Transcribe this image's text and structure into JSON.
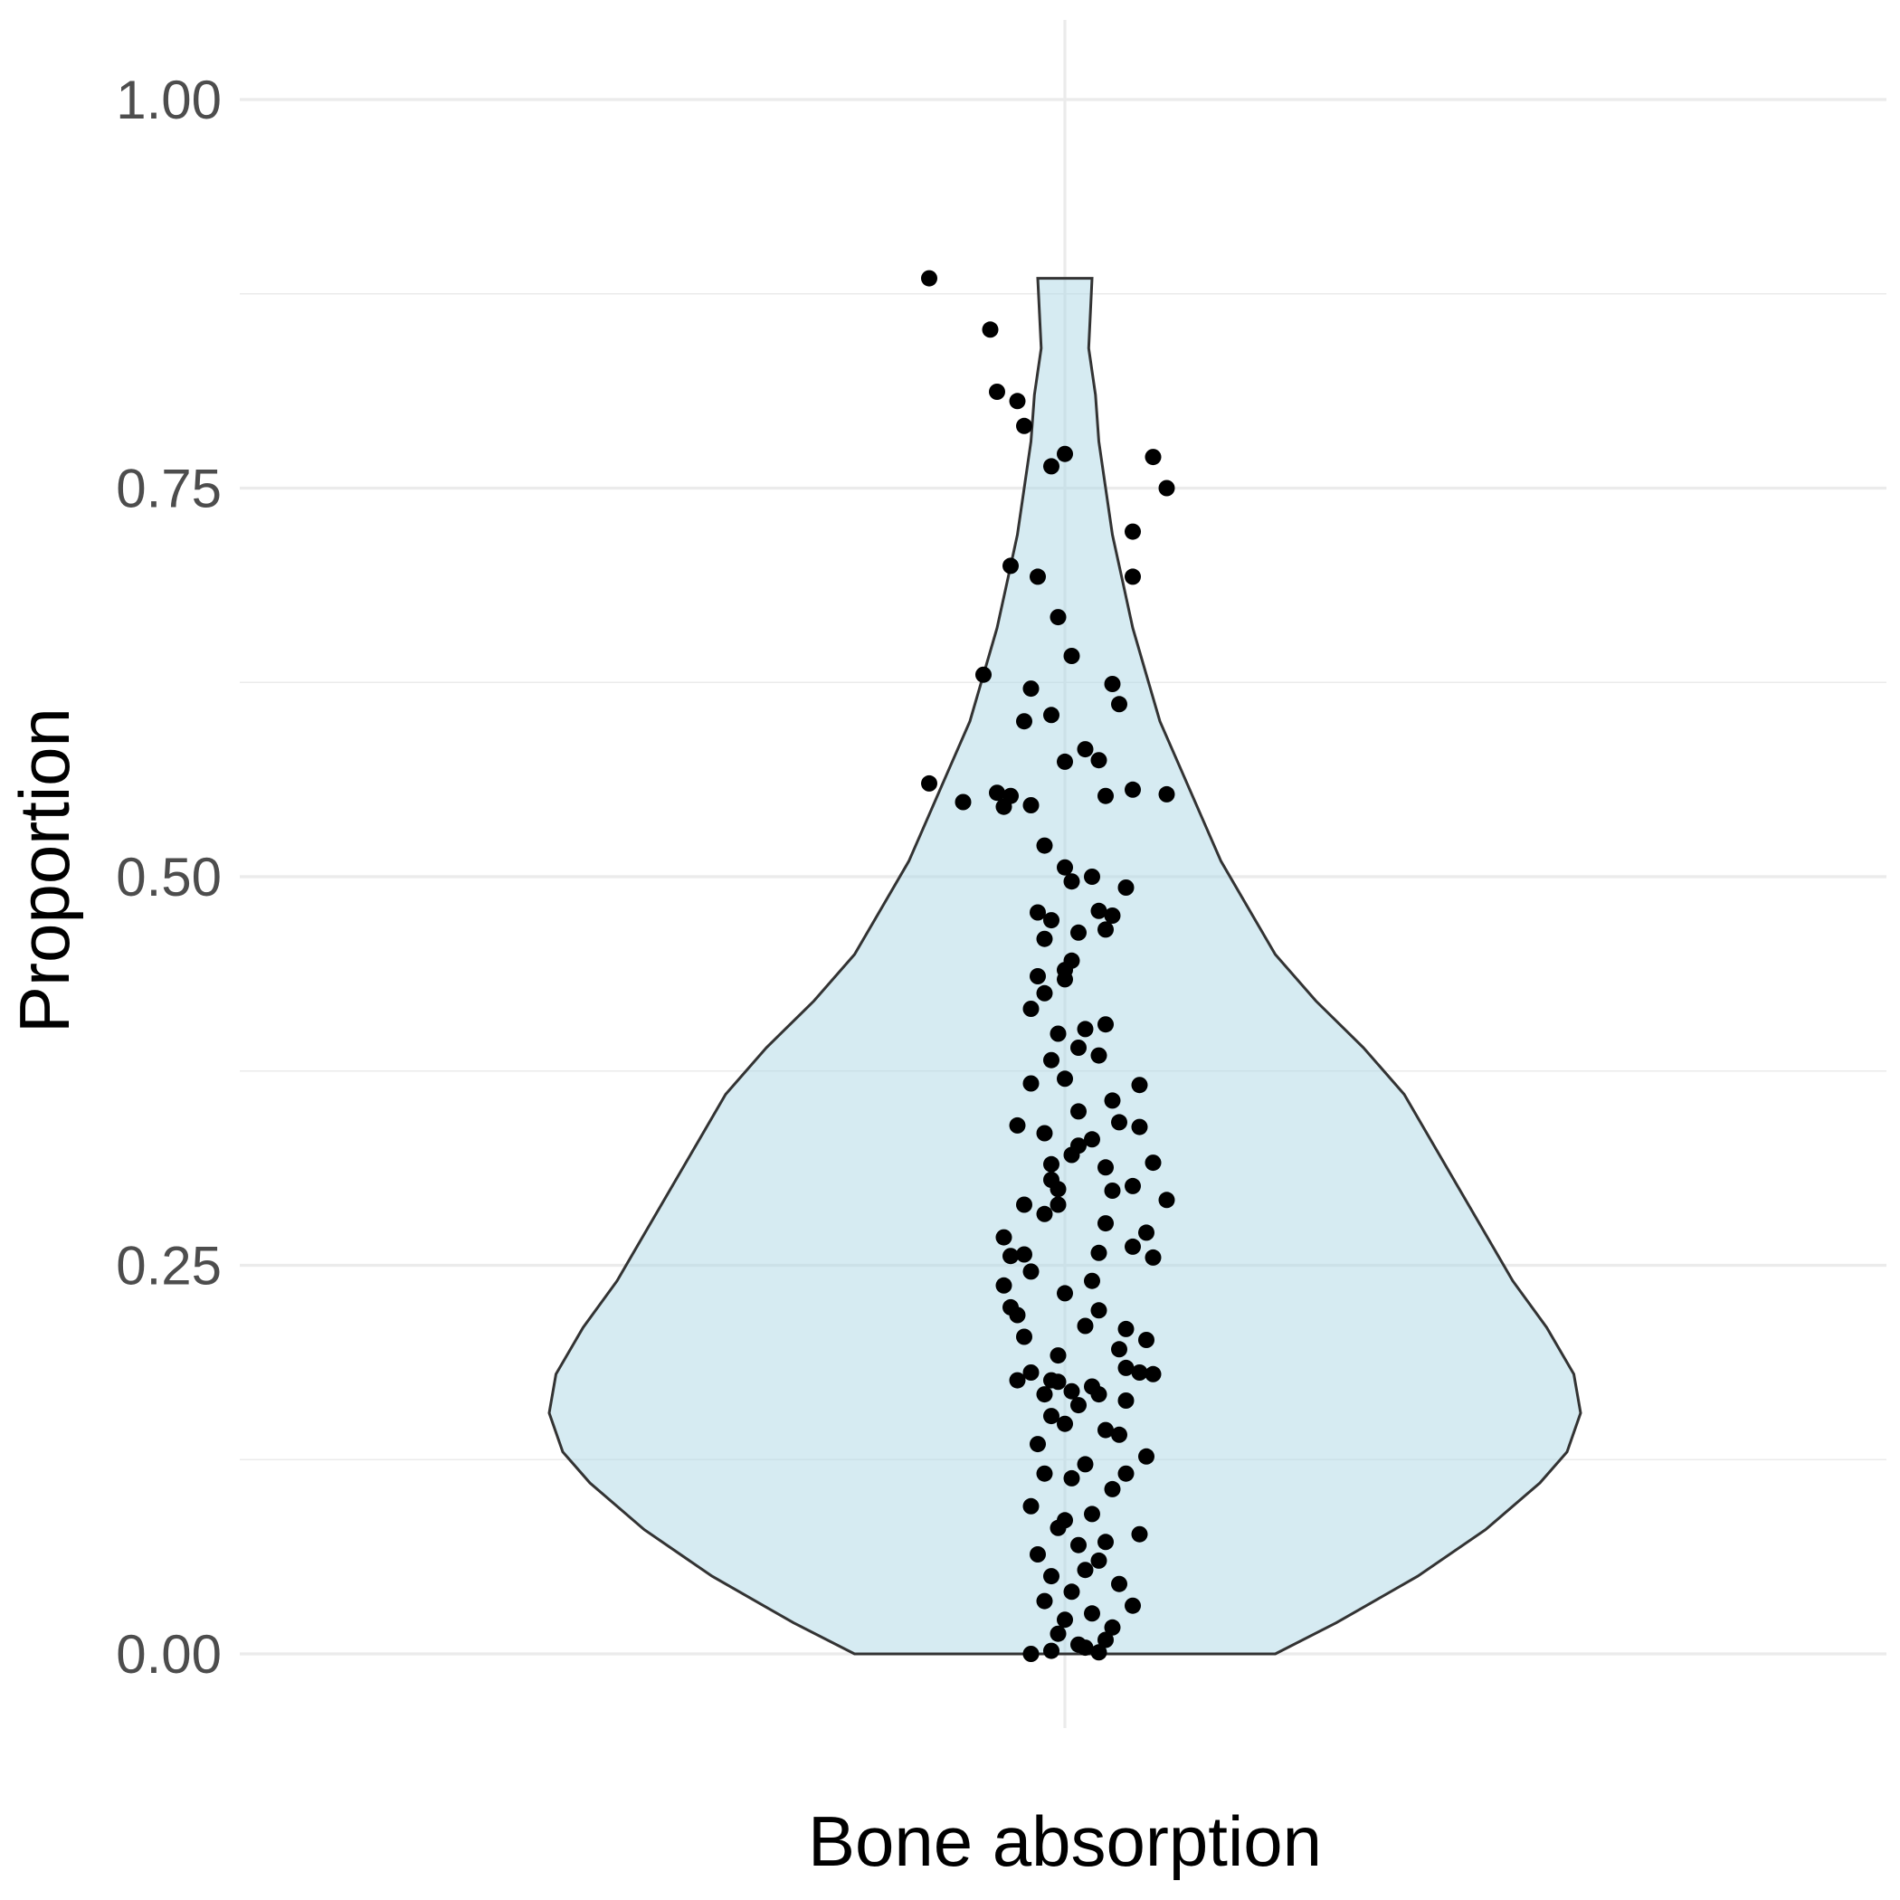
{
  "chart_data": {
    "type": "violin",
    "title": "",
    "xlabel": "",
    "ylabel": "Proportion",
    "categories": [
      "Bone absorption"
    ],
    "ylim": [
      -0.05,
      1.05
    ],
    "yticks": [
      "0.00",
      "0.25",
      "0.50",
      "0.75",
      "1.00"
    ],
    "grid": true,
    "violin": {
      "fill": "#add8e6",
      "fill_opacity": 0.5,
      "outline": "#333333",
      "y_min": 0.0,
      "y_max": 0.885,
      "density_profile": [
        [
          0.0,
          0.31
        ],
        [
          0.02,
          0.4
        ],
        [
          0.05,
          0.52
        ],
        [
          0.08,
          0.62
        ],
        [
          0.11,
          0.7
        ],
        [
          0.13,
          0.74
        ],
        [
          0.155,
          0.76
        ],
        [
          0.18,
          0.75
        ],
        [
          0.21,
          0.71
        ],
        [
          0.24,
          0.66
        ],
        [
          0.27,
          0.62
        ],
        [
          0.3,
          0.58
        ],
        [
          0.33,
          0.54
        ],
        [
          0.36,
          0.5
        ],
        [
          0.39,
          0.44
        ],
        [
          0.42,
          0.37
        ],
        [
          0.45,
          0.31
        ],
        [
          0.48,
          0.27
        ],
        [
          0.51,
          0.23
        ],
        [
          0.54,
          0.2
        ],
        [
          0.57,
          0.17
        ],
        [
          0.6,
          0.14
        ],
        [
          0.63,
          0.12
        ],
        [
          0.66,
          0.1
        ],
        [
          0.69,
          0.085
        ],
        [
          0.72,
          0.07
        ],
        [
          0.75,
          0.06
        ],
        [
          0.78,
          0.05
        ],
        [
          0.81,
          0.045
        ],
        [
          0.84,
          0.035
        ],
        [
          0.885,
          0.04
        ]
      ]
    },
    "points": [
      [
        -0.2,
        0.885
      ],
      [
        -0.11,
        0.852
      ],
      [
        -0.1,
        0.812
      ],
      [
        -0.07,
        0.806
      ],
      [
        -0.06,
        0.79
      ],
      [
        0.0,
        0.772
      ],
      [
        0.13,
        0.77
      ],
      [
        -0.02,
        0.764
      ],
      [
        0.15,
        0.75
      ],
      [
        0.1,
        0.722
      ],
      [
        -0.08,
        0.7
      ],
      [
        0.1,
        0.693
      ],
      [
        -0.04,
        0.693
      ],
      [
        -0.01,
        0.667
      ],
      [
        0.01,
        0.642
      ],
      [
        -0.12,
        0.63
      ],
      [
        0.07,
        0.624
      ],
      [
        -0.05,
        0.621
      ],
      [
        -0.02,
        0.604
      ],
      [
        0.08,
        0.611
      ],
      [
        -0.06,
        0.6
      ],
      [
        0.03,
        0.582
      ],
      [
        0.0,
        0.574
      ],
      [
        0.15,
        0.553
      ],
      [
        0.05,
        0.575
      ],
      [
        -0.2,
        0.56
      ],
      [
        -0.1,
        0.554
      ],
      [
        -0.15,
        0.548
      ],
      [
        -0.09,
        0.545
      ],
      [
        -0.08,
        0.552
      ],
      [
        0.1,
        0.556
      ],
      [
        0.06,
        0.552
      ],
      [
        -0.05,
        0.546
      ],
      [
        -0.03,
        0.52
      ],
      [
        0.0,
        0.506
      ],
      [
        0.04,
        0.5
      ],
      [
        0.01,
        0.497
      ],
      [
        0.09,
        0.493
      ],
      [
        0.05,
        0.478
      ],
      [
        -0.04,
        0.477
      ],
      [
        0.07,
        0.475
      ],
      [
        -0.02,
        0.472
      ],
      [
        0.06,
        0.466
      ],
      [
        0.02,
        0.464
      ],
      [
        -0.03,
        0.46
      ],
      [
        0.01,
        0.446
      ],
      [
        0.0,
        0.44
      ],
      [
        -0.04,
        0.436
      ],
      [
        0.0,
        0.434
      ],
      [
        -0.03,
        0.425
      ],
      [
        0.06,
        0.405
      ],
      [
        -0.05,
        0.415
      ],
      [
        0.03,
        0.402
      ],
      [
        -0.01,
        0.399
      ],
      [
        0.02,
        0.39
      ],
      [
        0.05,
        0.385
      ],
      [
        -0.02,
        0.382
      ],
      [
        0.0,
        0.37
      ],
      [
        -0.05,
        0.367
      ],
      [
        0.11,
        0.366
      ],
      [
        0.07,
        0.356
      ],
      [
        0.02,
        0.349
      ],
      [
        0.08,
        0.342
      ],
      [
        -0.07,
        0.34
      ],
      [
        0.11,
        0.339
      ],
      [
        -0.03,
        0.335
      ],
      [
        0.04,
        0.331
      ],
      [
        0.02,
        0.327
      ],
      [
        0.01,
        0.321
      ],
      [
        -0.02,
        0.315
      ],
      [
        0.13,
        0.316
      ],
      [
        0.06,
        0.313
      ],
      [
        -0.02,
        0.305
      ],
      [
        0.1,
        0.301
      ],
      [
        -0.01,
        0.299
      ],
      [
        0.07,
        0.298
      ],
      [
        0.15,
        0.292
      ],
      [
        -0.06,
        0.289
      ],
      [
        -0.01,
        0.289
      ],
      [
        -0.03,
        0.283
      ],
      [
        0.06,
        0.277
      ],
      [
        0.12,
        0.271
      ],
      [
        -0.09,
        0.268
      ],
      [
        0.1,
        0.262
      ],
      [
        0.05,
        0.258
      ],
      [
        -0.06,
        0.257
      ],
      [
        -0.08,
        0.256
      ],
      [
        0.13,
        0.255
      ],
      [
        -0.05,
        0.246
      ],
      [
        0.04,
        0.24
      ],
      [
        -0.09,
        0.237
      ],
      [
        0.0,
        0.232
      ],
      [
        -0.08,
        0.223
      ],
      [
        0.05,
        0.221
      ],
      [
        -0.07,
        0.218
      ],
      [
        0.03,
        0.211
      ],
      [
        0.09,
        0.209
      ],
      [
        -0.06,
        0.204
      ],
      [
        0.12,
        0.202
      ],
      [
        0.08,
        0.196
      ],
      [
        -0.01,
        0.192
      ],
      [
        0.09,
        0.184
      ],
      [
        -0.05,
        0.181
      ],
      [
        0.11,
        0.181
      ],
      [
        0.13,
        0.18
      ],
      [
        -0.02,
        0.176
      ],
      [
        -0.07,
        0.176
      ],
      [
        -0.01,
        0.175
      ],
      [
        0.04,
        0.172
      ],
      [
        0.05,
        0.167
      ],
      [
        0.01,
        0.169
      ],
      [
        -0.03,
        0.167
      ],
      [
        0.09,
        0.163
      ],
      [
        0.02,
        0.16
      ],
      [
        -0.02,
        0.153
      ],
      [
        0.0,
        0.148
      ],
      [
        0.06,
        0.144
      ],
      [
        0.08,
        0.141
      ],
      [
        -0.04,
        0.135
      ],
      [
        0.12,
        0.127
      ],
      [
        0.03,
        0.122
      ],
      [
        -0.03,
        0.116
      ],
      [
        0.09,
        0.116
      ],
      [
        0.01,
        0.113
      ],
      [
        0.07,
        0.106
      ],
      [
        -0.05,
        0.095
      ],
      [
        0.04,
        0.09
      ],
      [
        0.0,
        0.086
      ],
      [
        -0.01,
        0.081
      ],
      [
        0.11,
        0.077
      ],
      [
        0.06,
        0.072
      ],
      [
        0.02,
        0.07
      ],
      [
        -0.04,
        0.064
      ],
      [
        0.05,
        0.06
      ],
      [
        0.03,
        0.054
      ],
      [
        -0.02,
        0.05
      ],
      [
        0.08,
        0.045
      ],
      [
        0.01,
        0.04
      ],
      [
        -0.03,
        0.034
      ],
      [
        0.1,
        0.031
      ],
      [
        0.04,
        0.026
      ],
      [
        0.0,
        0.022
      ],
      [
        0.07,
        0.017
      ],
      [
        -0.01,
        0.013
      ],
      [
        0.06,
        0.009
      ],
      [
        0.02,
        0.006
      ],
      [
        0.03,
        0.004
      ],
      [
        -0.02,
        0.002
      ],
      [
        0.05,
        0.001
      ],
      [
        -0.05,
        0.0
      ]
    ]
  }
}
